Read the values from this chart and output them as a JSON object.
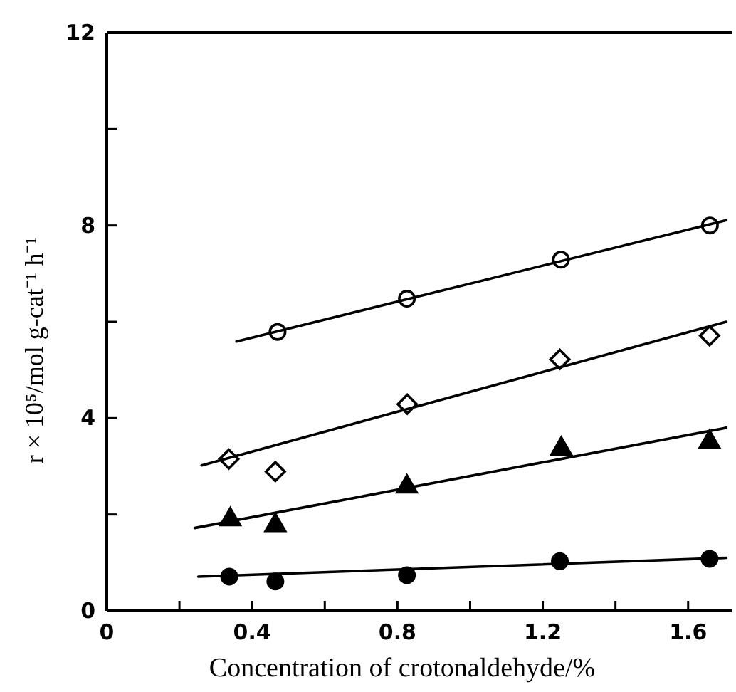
{
  "chart_data": {
    "type": "scatter",
    "xlabel": "Concentration of crotonaldehyde/%",
    "ylabel": "r × 10⁵/mol g-cat⁻¹ h⁻¹",
    "xlim": [
      0,
      1.72
    ],
    "ylim": [
      0,
      12
    ],
    "xticks": [
      0,
      {
        "value": 0.2,
        "label": null
      },
      0.4,
      {
        "value": 0.6,
        "label": null
      },
      0.8,
      {
        "value": 1.0,
        "label": null
      },
      1.2,
      {
        "value": 1.4,
        "label": null
      },
      1.6
    ],
    "yticks": [
      0,
      {
        "value": 2,
        "label": null
      },
      4,
      {
        "value": 6,
        "label": null
      },
      8,
      {
        "value": 10,
        "label": null
      },
      12
    ],
    "series": [
      {
        "marker": "circle",
        "color": "#ffffff",
        "x": [
          0.47,
          0.826,
          1.25,
          1.66
        ],
        "values": [
          5.79,
          6.48,
          7.29,
          8.0
        ]
      },
      {
        "marker": "diamond",
        "color": "#ffffff",
        "x": [
          0.336,
          0.464,
          0.827,
          1.247,
          1.659
        ],
        "values": [
          3.15,
          2.89,
          4.29,
          5.22,
          5.71
        ]
      },
      {
        "marker": "triangle",
        "color": "#000000",
        "x": [
          0.34,
          0.464,
          0.826,
          1.251,
          1.659
        ],
        "values": [
          1.94,
          1.82,
          2.62,
          3.41,
          3.55
        ]
      },
      {
        "marker": "circle",
        "color": "#000000",
        "x": [
          0.337,
          0.464,
          0.826,
          1.247,
          1.659
        ],
        "values": [
          0.71,
          0.61,
          0.74,
          1.03,
          1.08
        ]
      },
      {
        "type": "line",
        "marker": "none",
        "line_style": "solid",
        "color": "#000000",
        "x": [
          0.357,
          1.705
        ],
        "values": [
          5.59,
          8.11
        ]
      },
      {
        "type": "line",
        "marker": "none",
        "line_style": "solid",
        "color": "#000000",
        "x": [
          0.261,
          1.705
        ],
        "values": [
          3.02,
          6.0
        ]
      },
      {
        "type": "line",
        "marker": "none",
        "line_style": "solid",
        "color": "#000000",
        "x": [
          0.242,
          1.705
        ],
        "values": [
          1.72,
          3.8
        ]
      },
      {
        "type": "line",
        "marker": "none",
        "line_style": "solid",
        "color": "#000000",
        "x": [
          0.252,
          1.705
        ],
        "values": [
          0.71,
          1.1
        ]
      }
    ]
  }
}
